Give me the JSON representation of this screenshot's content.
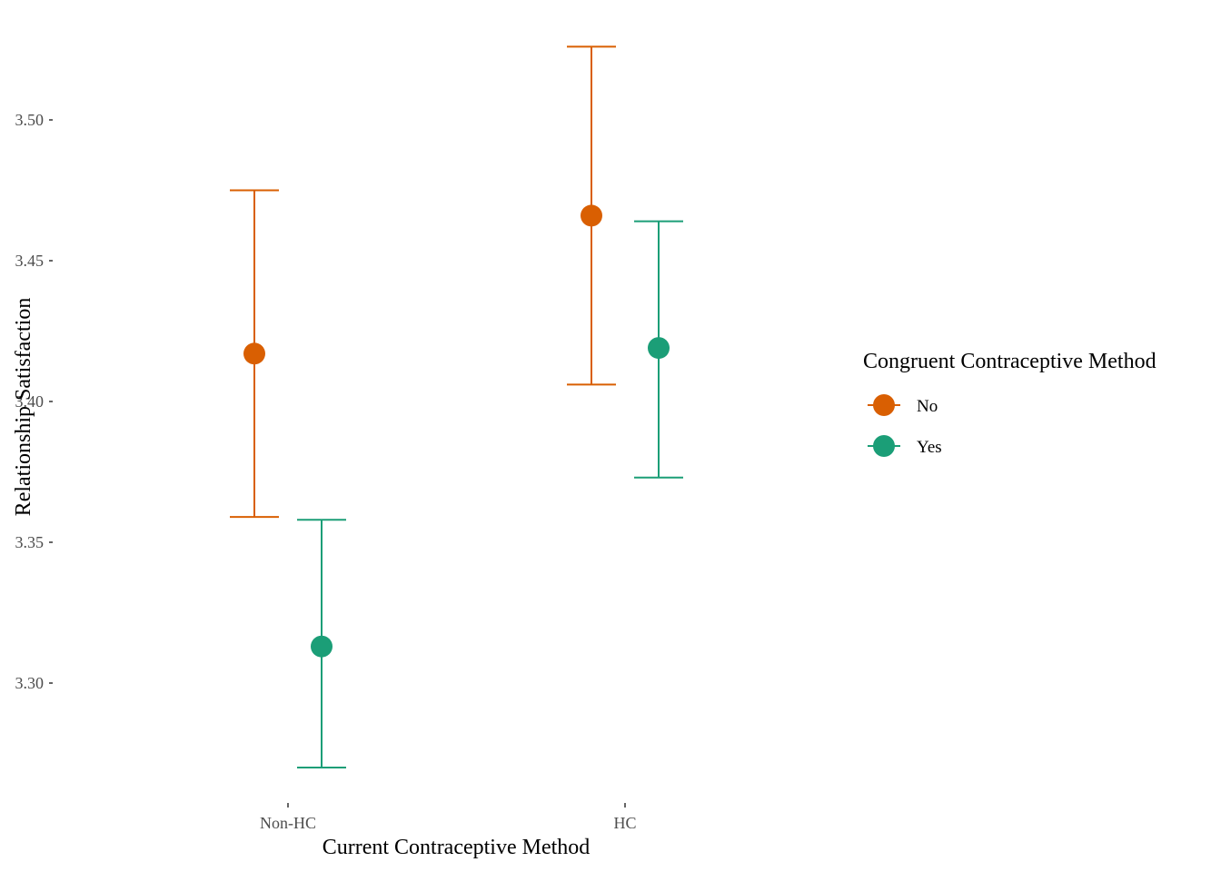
{
  "chart_data": {
    "type": "scatter",
    "subtype": "point-errorbar",
    "title": "",
    "xlabel": "Current Contraceptive Method",
    "ylabel": "Relationship Satisfaction",
    "categories": [
      "Non-HC",
      "HC"
    ],
    "ylim": [
      3.27,
      3.53
    ],
    "yticks": [
      3.3,
      3.35,
      3.4,
      3.45,
      3.5
    ],
    "ytick_labels": [
      "3.30",
      "3.35",
      "3.40",
      "3.45",
      "3.50"
    ],
    "grid": false,
    "legend": {
      "title": "Congruent Contraceptive Method",
      "position": "right"
    },
    "series": [
      {
        "name": "No",
        "color": "#d95f02",
        "values": [
          3.417,
          3.466
        ],
        "lower": [
          3.359,
          3.406
        ],
        "upper": [
          3.475,
          3.526
        ]
      },
      {
        "name": "Yes",
        "color": "#1b9e77",
        "values": [
          3.313,
          3.419
        ],
        "lower": [
          3.27,
          3.373
        ],
        "upper": [
          3.358,
          3.464
        ]
      }
    ]
  }
}
